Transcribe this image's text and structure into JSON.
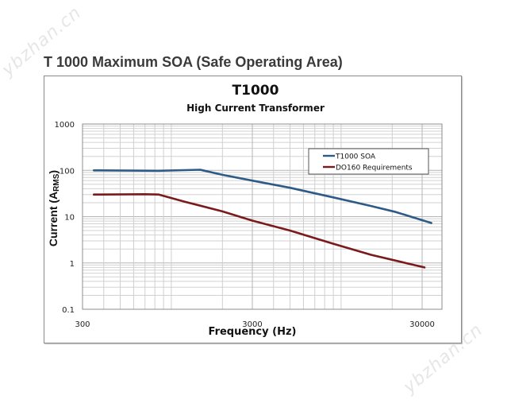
{
  "watermark_text": "ybzhan.cn",
  "page_title": "T 1000 Maximum SOA (Safe Operating Area)",
  "chart_data": {
    "type": "line",
    "title": "T1000",
    "subtitle": "High Current Transformer",
    "xlabel": "Frequency (Hz)",
    "ylabel": "Current (A",
    "ylabel_subscript": "RMS",
    "ylabel_suffix": ")",
    "xscale": "log",
    "yscale": "log",
    "xlim": [
      300,
      40000
    ],
    "ylim": [
      0.1,
      1000
    ],
    "xticks": [
      300,
      3000,
      30000
    ],
    "xtick_labels": [
      "300",
      "3000",
      "30000"
    ],
    "yticks": [
      0.1,
      1,
      10,
      100,
      1000
    ],
    "ytick_labels": [
      "0.1",
      "1",
      "10",
      "100",
      "1000"
    ],
    "grid": true,
    "legend_position": "top-right",
    "series": [
      {
        "name": "T1000  SOA",
        "color": "#2e5a87",
        "x": [
          350,
          840,
          1200,
          1480,
          2000,
          3000,
          5000,
          9000,
          15000,
          21000,
          34000
        ],
        "y": [
          100,
          98,
          101,
          103,
          80,
          60,
          42,
          26,
          17,
          12.6,
          7.3
        ]
      },
      {
        "name": "DO160 Requirements",
        "color": "#7a1a1a",
        "x": [
          350,
          700,
          845,
          1200,
          2000,
          3000,
          5000,
          9000,
          15000,
          31000
        ],
        "y": [
          30,
          30.5,
          30,
          21,
          13,
          8.2,
          5,
          2.6,
          1.5,
          0.8
        ]
      }
    ]
  }
}
